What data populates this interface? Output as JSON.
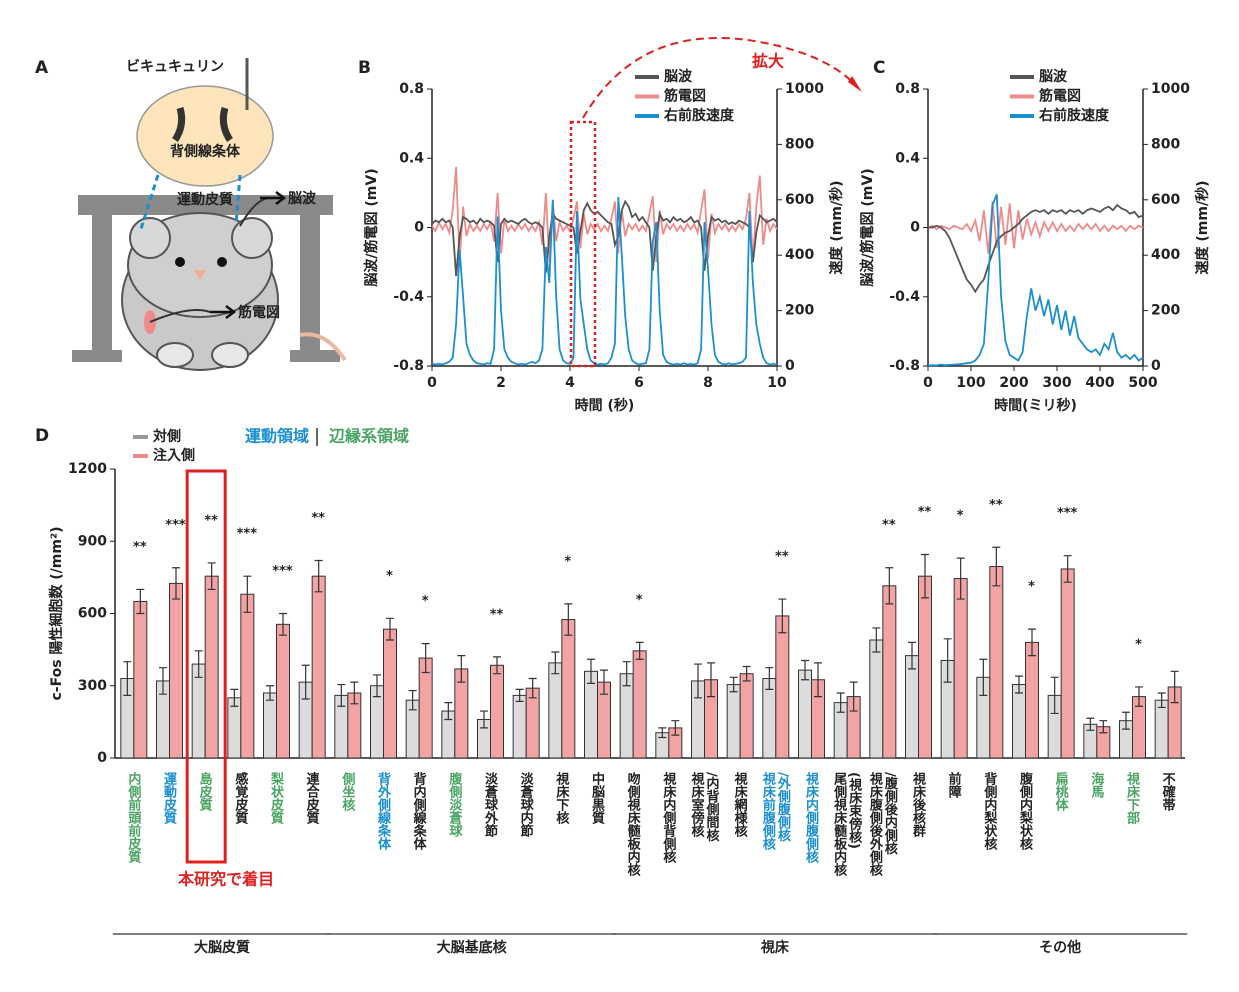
{
  "panel_labels": [
    "A",
    "B",
    "C",
    "D"
  ],
  "diagram": {
    "drug": "ビキュキュリン",
    "striatum": "背側線条体",
    "cortex": "運動皮質",
    "eeg": "脳波",
    "emg": "筋電図"
  },
  "chart_data": [
    {
      "type": "line",
      "annotation": "拡大",
      "xlabel": "時間 (秒)",
      "ylabel": "脳波/筋電図 (mV)",
      "y2label": "速度 (mm/秒)",
      "xlim": [
        0,
        10
      ],
      "xticks": [
        0,
        2,
        4,
        6,
        8,
        10
      ],
      "ylim": [
        -0.8,
        0.8
      ],
      "yticks": [
        -0.8,
        -0.4,
        0,
        0.4,
        0.8
      ],
      "y2lim": [
        0,
        1000
      ],
      "y2ticks": [
        0,
        200,
        400,
        600,
        800,
        1000
      ],
      "x": [
        0,
        0.1,
        0.2,
        0.3,
        0.4,
        0.5,
        0.6,
        0.7,
        0.8,
        0.9,
        1,
        1.1,
        1.2,
        1.3,
        1.4,
        1.5,
        1.6,
        1.7,
        1.8,
        1.9,
        2,
        2.1,
        2.2,
        2.3,
        2.4,
        2.5,
        2.6,
        2.7,
        2.8,
        2.9,
        3,
        3.1,
        3.2,
        3.3,
        3.4,
        3.5,
        3.6,
        3.7,
        3.8,
        3.9,
        4,
        4.1,
        4.2,
        4.3,
        4.4,
        4.5,
        4.6,
        4.7,
        4.8,
        4.9,
        5,
        5.1,
        5.2,
        5.3,
        5.4,
        5.5,
        5.6,
        5.7,
        5.8,
        5.9,
        6,
        6.1,
        6.2,
        6.3,
        6.4,
        6.5,
        6.6,
        6.7,
        6.8,
        6.9,
        7,
        7.1,
        7.2,
        7.3,
        7.4,
        7.5,
        7.6,
        7.7,
        7.8,
        7.9,
        8,
        8.1,
        8.2,
        8.3,
        8.4,
        8.5,
        8.6,
        8.7,
        8.8,
        8.9,
        9,
        9.1,
        9.2,
        9.3,
        9.4,
        9.5,
        9.6,
        9.7,
        9.8,
        9.9,
        10
      ],
      "series": [
        {
          "name": "脳波",
          "color": "#555555",
          "values": [
            0.02,
            0.04,
            0.03,
            0.05,
            0.03,
            0.04,
            0,
            -0.28,
            -0.05,
            0.06,
            0.05,
            0.03,
            0.04,
            0.02,
            0.05,
            0.03,
            0.04,
            0.03,
            0.01,
            -0.2,
            0.02,
            0.05,
            0.03,
            0.04,
            0.03,
            0.02,
            0.04,
            0.05,
            0.03,
            0.02,
            0.03,
            0.02,
            0,
            -0.26,
            -0.05,
            0.08,
            0.05,
            0.04,
            0.03,
            0.02,
            0.01,
            0,
            -0.15,
            -0.02,
            0.1,
            0.14,
            0.1,
            0.08,
            0.09,
            0.07,
            0.05,
            0.03,
            0.02,
            -0.1,
            -0.05,
            0.1,
            0.15,
            0.12,
            0.06,
            0.08,
            0.04,
            0.06,
            0.03,
            0,
            -0.25,
            -0.05,
            0.08,
            0.04,
            0.05,
            0.03,
            0.06,
            0.04,
            0.05,
            0.03,
            0.04,
            0.06,
            0.03,
            0.04,
            0,
            -0.25,
            -0.05,
            0.06,
            0.04,
            0.05,
            0.03,
            0.04,
            0.02,
            0.03,
            0.02,
            0.04,
            0.03,
            0.02,
            0,
            -0.2,
            -0.03,
            0.07,
            0.05,
            0.03,
            0.04,
            0.05,
            0.03
          ]
        },
        {
          "name": "筋電図",
          "color": "#ee8a8a",
          "values": [
            0.01,
            -0.02,
            0.03,
            -0.01,
            0.02,
            -0.03,
            0.1,
            0.35,
            -0.2,
            0.12,
            -0.05,
            0.02,
            -0.02,
            0.01,
            -0.02,
            0.02,
            -0.01,
            0.03,
            -0.08,
            0.2,
            -0.15,
            0.05,
            -0.02,
            0.01,
            -0.02,
            0.02,
            -0.01,
            0.02,
            -0.02,
            0.01,
            -0.02,
            0.03,
            -0.1,
            0.2,
            -0.2,
            0.15,
            -0.08,
            0.03,
            -0.02,
            0.01,
            -0.02,
            0.05,
            0.15,
            -0.12,
            0.08,
            -0.04,
            0.02,
            -0.01,
            0.02,
            -0.02,
            0.01,
            -0.02,
            0.05,
            0.15,
            -0.15,
            0.1,
            -0.05,
            0.02,
            -0.01,
            0.02,
            -0.02,
            0.01,
            -0.02,
            0.08,
            0.18,
            -0.2,
            0.1,
            -0.04,
            0.02,
            -0.01,
            0.02,
            -0.02,
            0.01,
            -0.02,
            0.02,
            -0.01,
            0.02,
            -0.03,
            0.1,
            0.22,
            -0.18,
            0.08,
            -0.03,
            0.02,
            -0.01,
            0.02,
            -0.02,
            0.01,
            -0.02,
            0.02,
            -0.01,
            0.05,
            0.2,
            -0.2,
            0.12,
            0.3,
            -0.1,
            0.05,
            -0.02,
            0.02,
            -0.01
          ]
        },
        {
          "name": "右前肢速度",
          "color": "#1b8fd2",
          "axis": "y2",
          "values": [
            10,
            5,
            8,
            5,
            10,
            15,
            30,
            150,
            420,
            250,
            80,
            40,
            20,
            10,
            8,
            5,
            10,
            8,
            60,
            540,
            200,
            60,
            30,
            15,
            10,
            5,
            8,
            5,
            10,
            15,
            10,
            20,
            60,
            430,
            300,
            600,
            250,
            60,
            20,
            10,
            8,
            30,
            560,
            240,
            150,
            60,
            20,
            10,
            5,
            8,
            5,
            10,
            30,
            80,
            610,
            400,
            180,
            60,
            20,
            10,
            5,
            8,
            10,
            60,
            450,
            520,
            200,
            40,
            15,
            8,
            5,
            8,
            5,
            10,
            5,
            8,
            5,
            10,
            60,
            520,
            350,
            150,
            40,
            15,
            8,
            5,
            10,
            5,
            8,
            10,
            15,
            30,
            560,
            300,
            150,
            80,
            30,
            10,
            5,
            8,
            5
          ]
        }
      ]
    },
    {
      "type": "line",
      "xlabel": "時間(ミリ秒)",
      "ylabel": "脳波/筋電図 (mV)",
      "y2label": "速度 (mm/秒)",
      "xlim": [
        0,
        500
      ],
      "xticks": [
        0,
        100,
        200,
        300,
        400,
        500
      ],
      "ylim": [
        -0.8,
        0.8
      ],
      "yticks": [
        -0.8,
        -0.4,
        0,
        0.4,
        0.8
      ],
      "y2lim": [
        0,
        1000
      ],
      "y2ticks": [
        0,
        200,
        400,
        600,
        800,
        1000
      ],
      "x": [
        0,
        10,
        20,
        30,
        40,
        50,
        60,
        70,
        80,
        90,
        100,
        110,
        120,
        130,
        140,
        150,
        160,
        170,
        180,
        190,
        200,
        210,
        220,
        230,
        240,
        250,
        260,
        270,
        280,
        290,
        300,
        310,
        320,
        330,
        340,
        350,
        360,
        370,
        380,
        390,
        400,
        410,
        420,
        430,
        440,
        450,
        460,
        470,
        480,
        490,
        500
      ],
      "series": [
        {
          "name": "脳波",
          "color": "#555555",
          "values": [
            0,
            0,
            0.01,
            0,
            -0.02,
            -0.06,
            -0.12,
            -0.18,
            -0.24,
            -0.3,
            -0.33,
            -0.37,
            -0.33,
            -0.3,
            -0.22,
            -0.15,
            -0.08,
            -0.05,
            -0.03,
            -0.02,
            0,
            0.02,
            0.05,
            0.07,
            0.09,
            0.1,
            0.09,
            0.1,
            0.08,
            0.1,
            0.09,
            0.1,
            0.08,
            0.1,
            0.09,
            0.1,
            0.08,
            0.1,
            0.11,
            0.1,
            0.09,
            0.11,
            0.12,
            0.1,
            0.13,
            0.11,
            0.1,
            0.08,
            0.09,
            0.06,
            0.07
          ]
        },
        {
          "name": "筋電図",
          "color": "#ee8a8a",
          "values": [
            0,
            0.01,
            -0.01,
            0.01,
            0,
            -0.01,
            0.01,
            0,
            -0.01,
            0.02,
            -0.02,
            0.04,
            -0.08,
            0.1,
            -0.15,
            0.15,
            -0.12,
            0.12,
            -0.1,
            0.14,
            -0.12,
            0.1,
            -0.07,
            0.05,
            -0.04,
            0.03,
            -0.05,
            0.03,
            -0.02,
            0.03,
            -0.02,
            0.02,
            -0.02,
            0.01,
            -0.02,
            0.02,
            -0.01,
            0.02,
            -0.01,
            0.02,
            -0.02,
            0.01,
            -0.02,
            0.01,
            -0.01,
            0.01,
            -0.02,
            0.01,
            -0.01,
            0.01,
            0
          ]
        },
        {
          "name": "右前肢速度",
          "color": "#1b8fd2",
          "axis": "y2",
          "values": [
            2,
            3,
            2,
            5,
            3,
            4,
            5,
            6,
            8,
            10,
            12,
            20,
            40,
            80,
            300,
            580,
            620,
            250,
            90,
            40,
            30,
            20,
            50,
            180,
            280,
            200,
            250,
            180,
            240,
            150,
            220,
            130,
            200,
            110,
            180,
            100,
            80,
            60,
            50,
            60,
            40,
            80,
            60,
            120,
            50,
            30,
            40,
            25,
            40,
            20,
            30
          ]
        }
      ]
    },
    {
      "type": "bar",
      "ylabel": "c-Fos 陽性細胞数 (/mm²)",
      "ylim": [
        0,
        1200
      ],
      "yticks": [
        0,
        300,
        600,
        900,
        1200
      ],
      "annotation": "本研究で着目",
      "label_legend": [
        {
          "label": "運動領域",
          "color": "#1b8fd2"
        },
        {
          "label": "辺縁系領域",
          "color": "#4aa564"
        }
      ],
      "categories": [
        "内側前頭前皮質",
        "運動皮質",
        "島皮質",
        "感覚皮質",
        "梨状皮質",
        "連合皮質",
        "側坐核",
        "背外側線条体",
        "背内側線条体",
        "腹側淡蒼球",
        "淡蒼球外節",
        "淡蒼球内節",
        "視床下核",
        "中脳黒質",
        "吻側視床髄板内核",
        "視床内側背側核",
        "視床室傍核\n/内背側間核",
        "視床網様核",
        "視床前腹側核\n/外側腹側核",
        "視床内側腹側核",
        "尾側視床髄板内核\n(視床束傍核)",
        "視床腹側後外側核\n/腹側後内側核",
        "視床後核群",
        "前障",
        "背側内梨状核",
        "腹側内梨状核",
        "扁桃体",
        "海馬",
        "視床下部",
        "不確帯"
      ],
      "label_colors": [
        "#4aa564",
        "#1b8fd2",
        "#4aa564",
        "#222222",
        "#4aa564",
        "#222222",
        "#4aa564",
        "#1b8fd2",
        "#222222",
        "#4aa564",
        "#222222",
        "#222222",
        "#222222",
        "#222222",
        "#222222",
        "#222222",
        "#222222",
        "#222222",
        "#1b8fd2",
        "#1b8fd2",
        "#222222",
        "#222222",
        "#222222",
        "#222222",
        "#222222",
        "#222222",
        "#4aa564",
        "#4aa564",
        "#4aa564",
        "#222222"
      ],
      "category_groups": [
        "大脳皮質",
        "大脳皮質",
        "大脳皮質",
        "大脳皮質",
        "大脳皮質",
        "大脳皮質",
        "大脳基底核",
        "大脳基底核",
        "大脳基底核",
        "大脳基底核",
        "大脳基底核",
        "大脳基底核",
        "大脳基底核",
        "大脳基底核",
        "視床",
        "視床",
        "視床",
        "視床",
        "視床",
        "視床",
        "視床",
        "視床",
        "視床",
        "その他",
        "その他",
        "その他",
        "その他",
        "その他",
        "その他",
        "その他"
      ],
      "significance": [
        "**",
        "***",
        "**",
        "***",
        "***",
        "**",
        null,
        "*",
        "*",
        null,
        "**",
        null,
        "*",
        null,
        "*",
        null,
        null,
        null,
        "**",
        null,
        null,
        "**",
        "**",
        "*",
        "**",
        "*",
        "***",
        null,
        "*",
        null
      ],
      "series": [
        {
          "name": "対側",
          "color": "#dcdcdc",
          "legend_color": "#999999",
          "values": [
            330,
            320,
            390,
            250,
            270,
            315,
            260,
            300,
            240,
            195,
            160,
            260,
            395,
            360,
            350,
            105,
            320,
            305,
            330,
            365,
            230,
            490,
            425,
            405,
            335,
            305,
            260,
            140,
            155,
            240
          ],
          "errors": [
            70,
            55,
            55,
            35,
            30,
            70,
            45,
            45,
            40,
            35,
            35,
            25,
            45,
            50,
            50,
            20,
            70,
            30,
            45,
            40,
            40,
            50,
            55,
            90,
            75,
            35,
            75,
            25,
            35,
            30
          ]
        },
        {
          "name": "注入側",
          "color": "#f2a3a3",
          "legend_color": "#f08a8a",
          "values": [
            650,
            725,
            755,
            680,
            555,
            755,
            270,
            535,
            415,
            370,
            385,
            290,
            575,
            315,
            445,
            125,
            325,
            350,
            590,
            325,
            255,
            715,
            755,
            745,
            795,
            480,
            785,
            130,
            255,
            295
          ],
          "errors": [
            50,
            65,
            55,
            75,
            45,
            65,
            45,
            45,
            60,
            55,
            35,
            40,
            65,
            50,
            35,
            30,
            70,
            30,
            70,
            70,
            60,
            75,
            90,
            85,
            80,
            55,
            55,
            25,
            40,
            65
          ]
        }
      ]
    }
  ]
}
